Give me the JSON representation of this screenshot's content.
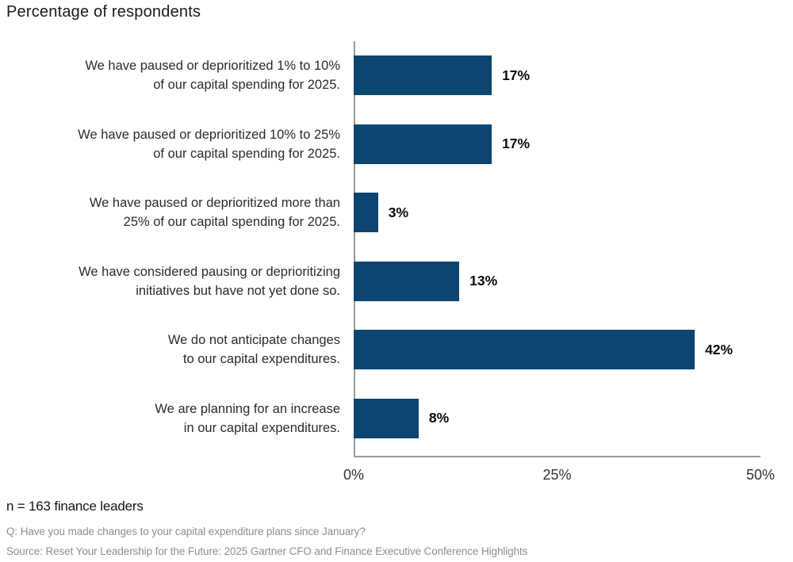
{
  "title": "Percentage of respondents",
  "colors": {
    "bar": "#0b4570",
    "axis": "#9a9a9a",
    "category_text": "#2b2b2b",
    "value_text": "#0a0a0a",
    "footnote_text": "#8e8e8e"
  },
  "chart_data": {
    "type": "bar",
    "orientation": "horizontal",
    "title": "Percentage of respondents",
    "categories": [
      "We have paused or deprioritized 1% to 10% of our capital spending for 2025.",
      "We have paused or deprioritized 10% to 25% of our capital spending for 2025.",
      "We have paused or deprioritized more than 25% of our capital spending for 2025.",
      "We have considered pausing or deprioritizing initiatives but have not yet done so.",
      "We do not anticipate changes to our capital expenditures.",
      "We are planning for an increase in our capital expenditures."
    ],
    "category_lines": [
      [
        "We have paused or deprioritized 1% to 10%",
        "of our capital spending for 2025."
      ],
      [
        "We have paused or deprioritized 10% to 25%",
        "of our capital spending for 2025."
      ],
      [
        "We have paused or deprioritized more than",
        "25% of our capital spending for 2025."
      ],
      [
        "We have considered pausing or deprioritizing",
        "initiatives but have not yet done so."
      ],
      [
        "We do not anticipate changes",
        "to our capital expenditures."
      ],
      [
        "We are planning for an increase",
        "in our capital expenditures."
      ]
    ],
    "values": [
      17,
      17,
      3,
      13,
      42,
      8
    ],
    "value_labels": [
      "17%",
      "17%",
      "3%",
      "13%",
      "42%",
      "8%"
    ],
    "xlabel": "",
    "ylabel": "",
    "xlim": [
      0,
      50
    ],
    "x_ticks": [
      {
        "value": 0,
        "label": "0%"
      },
      {
        "value": 25,
        "label": "25%"
      },
      {
        "value": 50,
        "label": "50%"
      }
    ],
    "grid": false,
    "legend": "none"
  },
  "footer": {
    "sample": "n = 163 finance leaders",
    "question": "Q: Have you made changes to your capital expenditure plans since January?",
    "source": "Source: Reset Your Leadership for the Future: 2025 Gartner CFO and Finance Executive Conference Highlights"
  }
}
